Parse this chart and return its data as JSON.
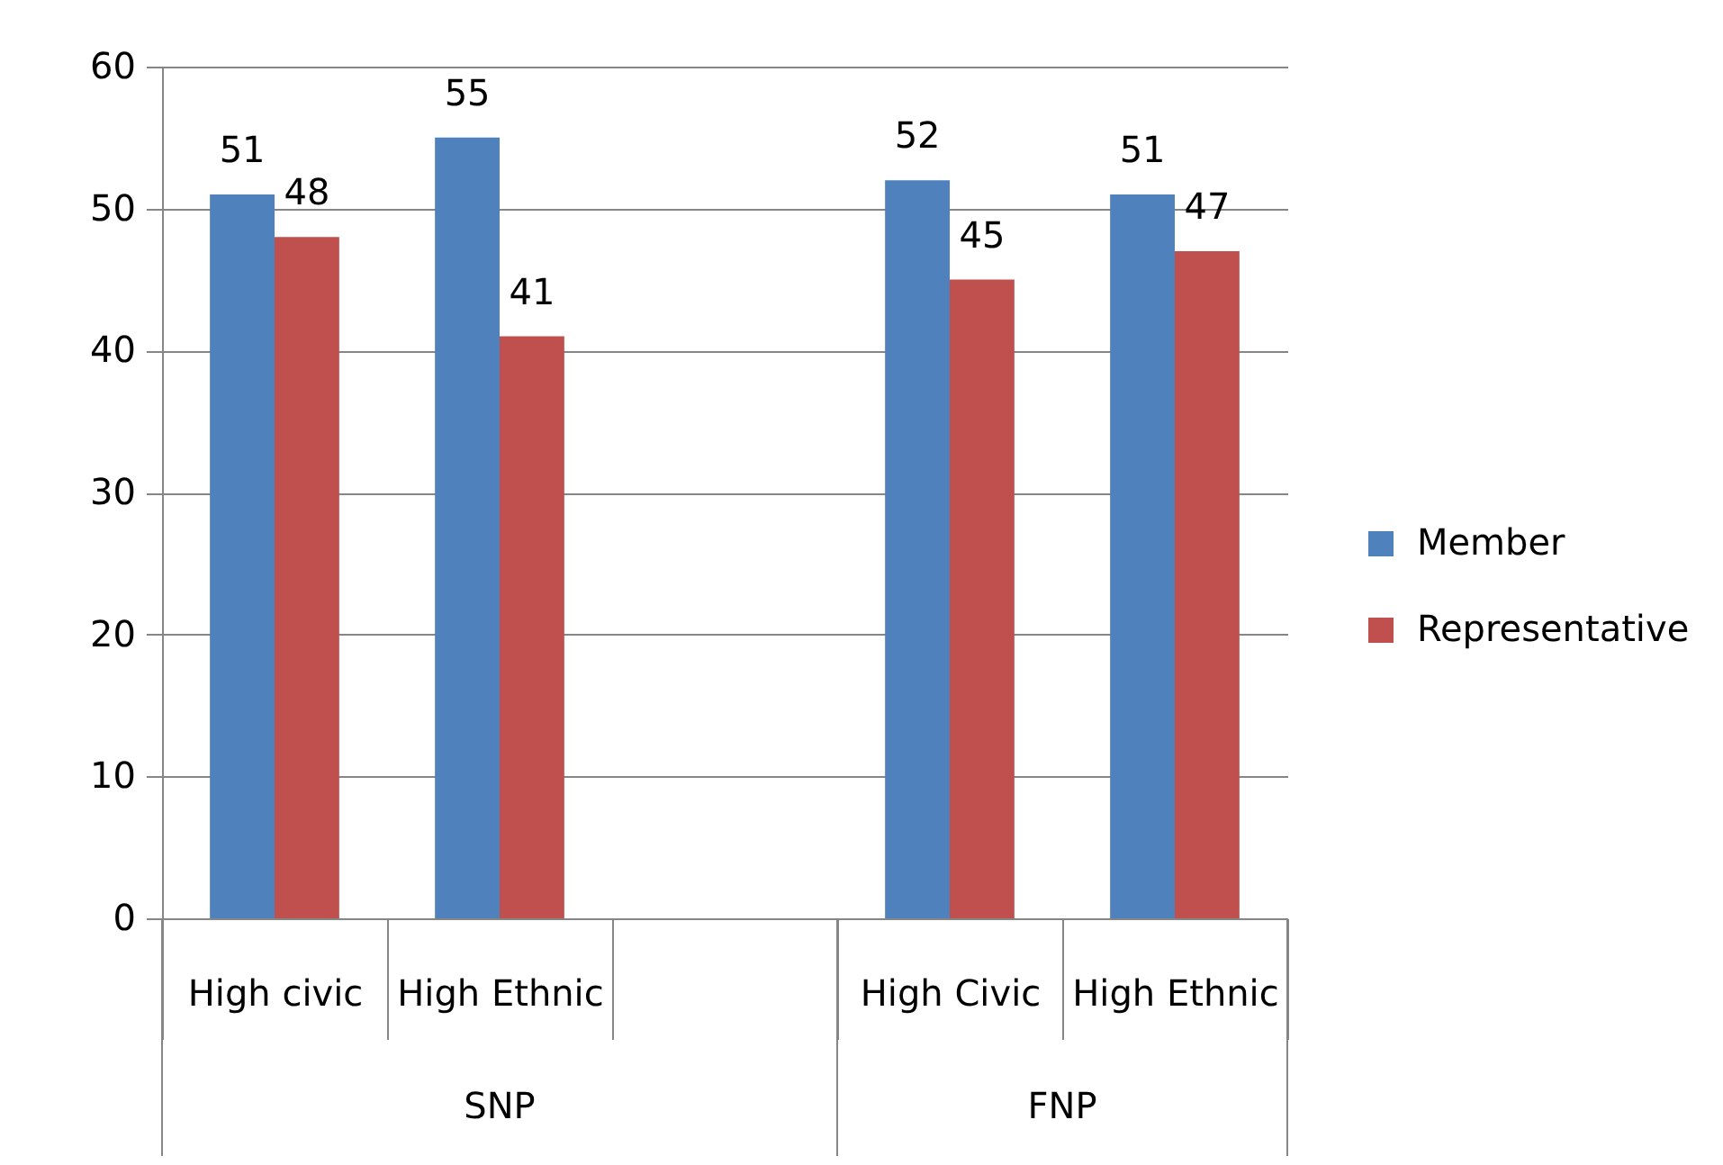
{
  "chart_data": {
    "type": "bar",
    "categories": [
      "High civic",
      "High Ethnic",
      null,
      "High Civic",
      "High Ethnic"
    ],
    "series": [
      {
        "name": "Member",
        "color": "#4f81bd",
        "values": [
          51,
          55,
          null,
          52,
          51
        ]
      },
      {
        "name": "Representative",
        "color": "#c0504d",
        "values": [
          48,
          41,
          null,
          45,
          47
        ]
      }
    ],
    "ylim": [
      0,
      60
    ],
    "yticks": [
      0,
      10,
      20,
      30,
      40,
      50,
      60
    ],
    "grid": "y",
    "legend": "right",
    "data_labels": true,
    "annotations": [
      "SNP",
      "FNP"
    ]
  }
}
